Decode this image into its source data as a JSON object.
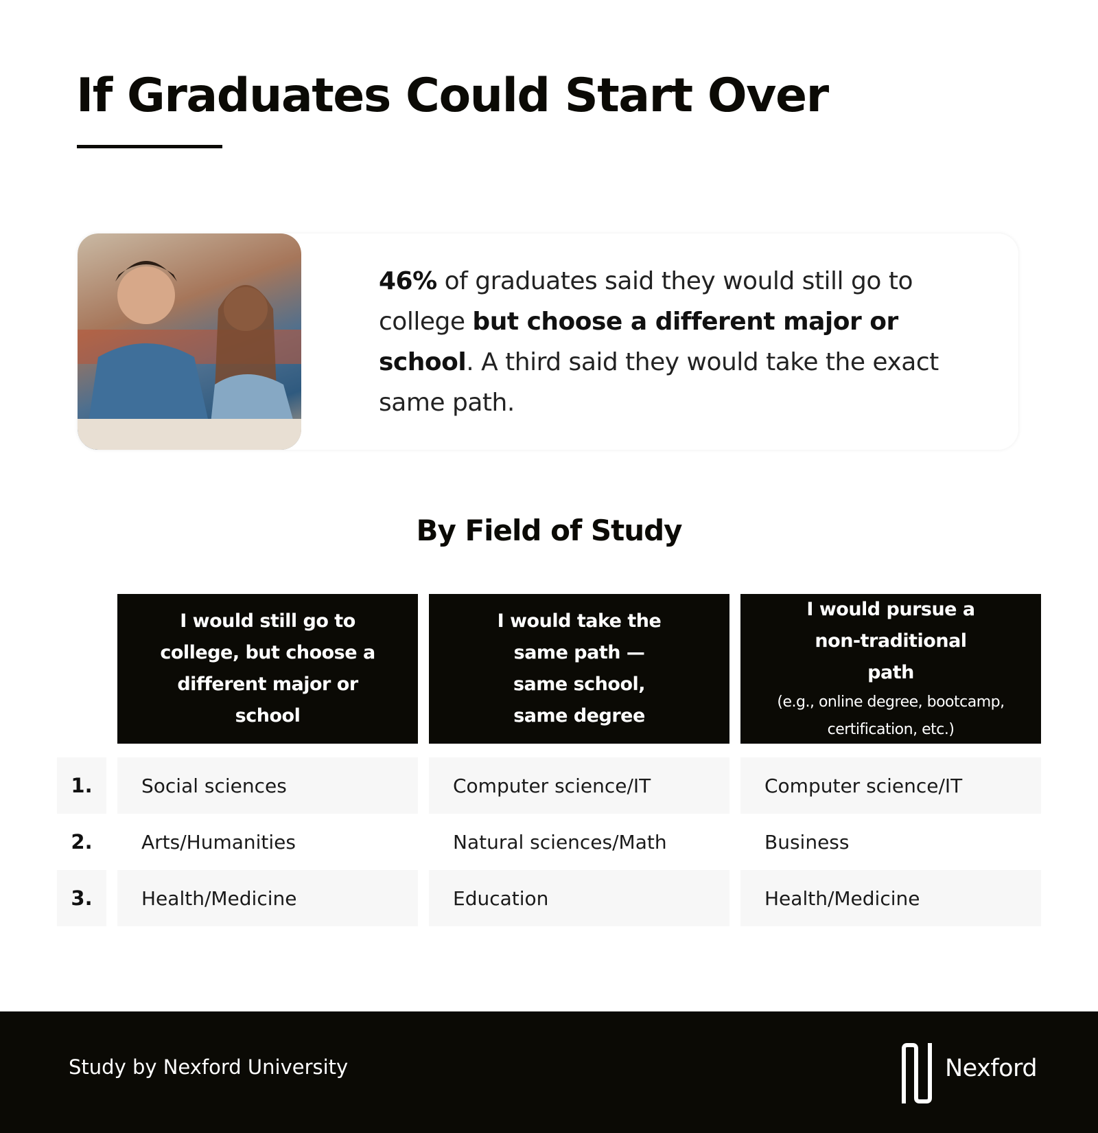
{
  "title": "If Graduates Could Start Over",
  "highlight": {
    "stat": "46%",
    "text1": " of graduates said they would still go to college ",
    "bold1": "but choose a different major or school",
    "text2": ". A third said they would take the exact same path."
  },
  "section_title": "By Field of Study",
  "table": {
    "headers": [
      {
        "main": "I would still go to college, but choose a different major or school",
        "note": ""
      },
      {
        "main": "I would take the same path — same school, same degree",
        "note": ""
      },
      {
        "main": "I would pursue a non-traditional path",
        "note": "(e.g., online degree, bootcamp, certification, etc.)"
      }
    ],
    "rows": [
      {
        "rank": "1.",
        "cells": [
          "Social sciences",
          "Computer science/IT",
          "Computer science/IT"
        ]
      },
      {
        "rank": "2.",
        "cells": [
          "Arts/Humanities",
          "Natural sciences/Math",
          "Business"
        ]
      },
      {
        "rank": "3.",
        "cells": [
          "Health/Medicine",
          "Education",
          "Health/Medicine"
        ]
      }
    ]
  },
  "footer": {
    "credit": "Study by Nexford University",
    "logo_text": "Nexford"
  },
  "colors": {
    "dark": "#0b0a05",
    "row_fill": "#f7f7f7"
  }
}
